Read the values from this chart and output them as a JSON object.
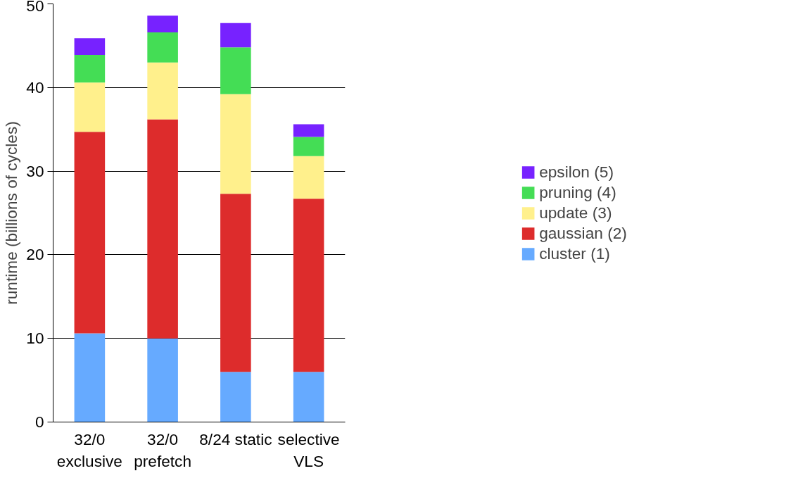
{
  "chart_data": {
    "type": "bar",
    "stacked": true,
    "ylabel": "runtime (billions of cycles)",
    "categories": [
      "32/0\nexclusive",
      "32/0\nprefetch",
      "8/24 static",
      "selective\nVLS"
    ],
    "series": [
      {
        "name": "cluster (1)",
        "color": "#66aaff",
        "values": [
          10.6,
          10.0,
          6.0,
          6.0
        ]
      },
      {
        "name": "gaussian (2)",
        "color": "#dd2c2c",
        "values": [
          24.1,
          26.2,
          21.3,
          20.7
        ]
      },
      {
        "name": "update (3)",
        "color": "#fff08c",
        "values": [
          5.9,
          6.8,
          11.9,
          5.1
        ]
      },
      {
        "name": "pruning (4)",
        "color": "#44dd55",
        "values": [
          3.3,
          3.6,
          5.6,
          2.3
        ]
      },
      {
        "name": "epsilon (5)",
        "color": "#7722ff",
        "values": [
          2.0,
          2.0,
          2.9,
          1.5
        ]
      }
    ],
    "ylim": [
      0,
      50
    ],
    "yticks": [
      0,
      10,
      20,
      30,
      40,
      50
    ],
    "grid": "y",
    "legend": "right"
  }
}
